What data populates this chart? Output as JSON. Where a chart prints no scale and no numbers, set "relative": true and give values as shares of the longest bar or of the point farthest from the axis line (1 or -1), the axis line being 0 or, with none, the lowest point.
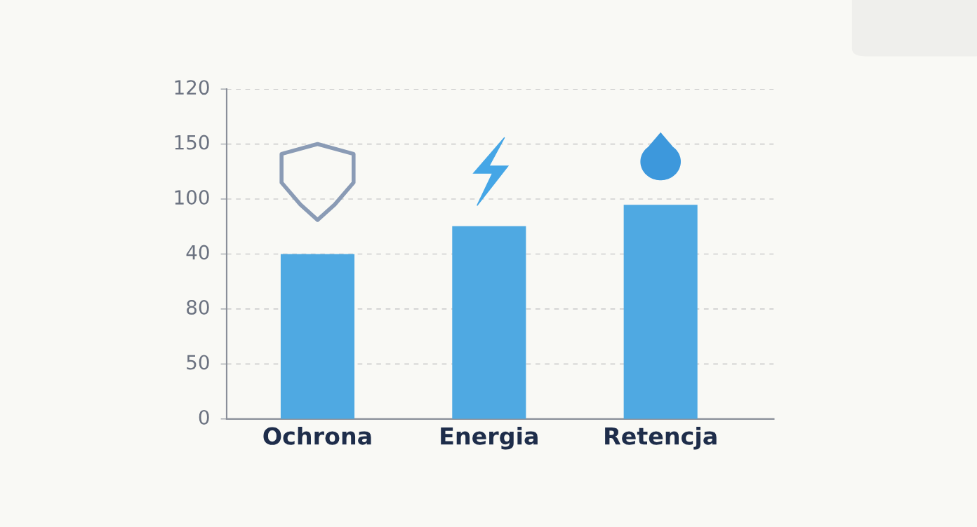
{
  "chart_data": {
    "type": "bar",
    "categories": [
      "Ochrona",
      "Energia",
      "Retencja"
    ],
    "values": [
      0.77,
      0.9,
      1.0
    ],
    "relative": true,
    "color": "#4fa9e2",
    "annotations": [
      "0",
      "50",
      "80",
      "40",
      "100",
      "150",
      "120"
    ],
    "grid": "y"
  }
}
